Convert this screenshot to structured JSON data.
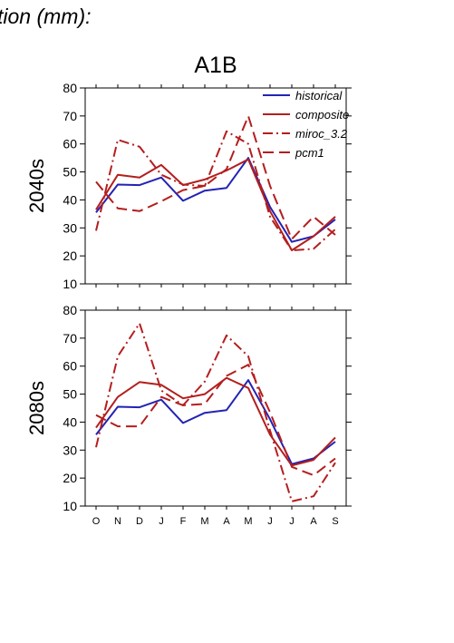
{
  "header_text": "tion (mm):",
  "chart_data": {
    "type": "line",
    "title": "A1B",
    "categories": [
      "O",
      "N",
      "D",
      "J",
      "F",
      "M",
      "A",
      "M",
      "J",
      "J",
      "A",
      "S"
    ],
    "ylim": [
      10,
      80
    ],
    "yticks": [
      "10",
      "20",
      "30",
      "40",
      "50",
      "60",
      "70",
      "80"
    ],
    "legend": {
      "placement": "top-right",
      "entries": [
        "historical",
        "composite",
        "miroc_3.2",
        "pcm1"
      ]
    },
    "colors": {
      "historical": "#2323b4",
      "composite": "#b41e1e",
      "miroc_3.2": "#b41e1e",
      "pcm1": "#b41e1e",
      "axis": "#000000"
    },
    "panels": [
      {
        "row_label": "2040s",
        "series": [
          {
            "name": "historical",
            "style": "solid",
            "values": [
              35.5,
              45.5,
              45.3,
              48.0,
              39.7,
              43.3,
              44.3,
              55.0,
              37.5,
              25.0,
              27.0,
              33.0
            ]
          },
          {
            "name": "composite",
            "style": "solid",
            "values": [
              36.5,
              49.0,
              48.0,
              52.5,
              45.3,
              47.3,
              50.5,
              54.5,
              36.0,
              22.0,
              27.0,
              34.0
            ]
          },
          {
            "name": "miroc_3.2",
            "style": "dashdot",
            "values": [
              29.0,
              61.5,
              59.0,
              49.0,
              45.5,
              45.0,
              64.5,
              60.0,
              34.0,
              22.0,
              22.5,
              29.5
            ]
          },
          {
            "name": "pcm1",
            "style": "dashed",
            "values": [
              46.5,
              37.0,
              36.0,
              39.5,
              43.5,
              45.0,
              51.0,
              70.0,
              45.0,
              26.0,
              34.0,
              27.5
            ]
          }
        ]
      },
      {
        "row_label": "2080s",
        "series": [
          {
            "name": "historical",
            "style": "solid",
            "values": [
              35.5,
              45.5,
              45.3,
              48.0,
              39.7,
              43.3,
              44.3,
              55.0,
              41.0,
              25.0,
              27.0,
              33.0
            ]
          },
          {
            "name": "composite",
            "style": "solid",
            "values": [
              38.0,
              49.0,
              54.3,
              53.3,
              48.5,
              50.0,
              55.8,
              52.2,
              35.5,
              24.5,
              26.5,
              34.5
            ]
          },
          {
            "name": "miroc_3.2",
            "style": "dashdot",
            "values": [
              31.0,
              63.5,
              75.3,
              51.3,
              46.0,
              54.5,
              71.0,
              63.5,
              37.0,
              11.7,
              13.5,
              25.5
            ]
          },
          {
            "name": "pcm1",
            "style": "dashed",
            "values": [
              42.5,
              38.5,
              38.5,
              49.0,
              46.0,
              46.5,
              56.5,
              60.5,
              43.5,
              24.0,
              21.0,
              27.0
            ]
          }
        ]
      }
    ]
  }
}
